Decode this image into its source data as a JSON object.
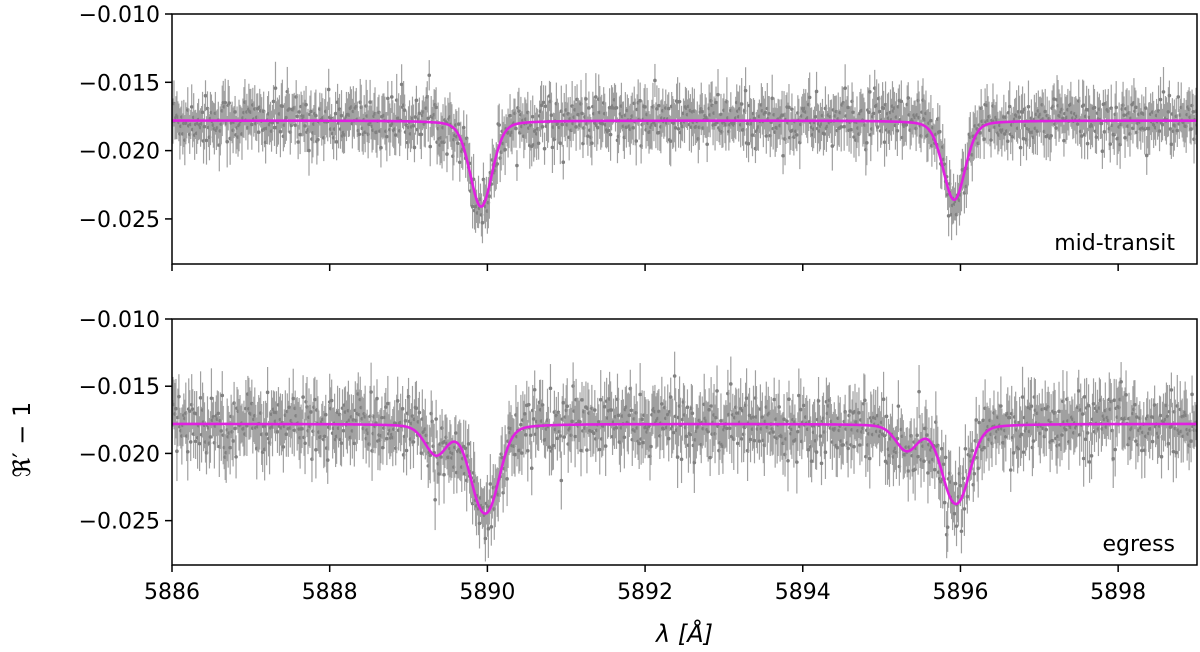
{
  "chart_data": [
    {
      "type": "scatter",
      "panel_label": "mid-transit",
      "xlim": [
        5886,
        5899
      ],
      "ylim": [
        -0.0283,
        -0.01
      ],
      "yticks": [
        -0.01,
        -0.015,
        -0.02,
        -0.025
      ],
      "ytick_labels": [
        "−0.010",
        "−0.015",
        "−0.020",
        "−0.025"
      ],
      "xticks": [
        5886,
        5888,
        5890,
        5892,
        5894,
        5896,
        5898
      ],
      "xtick_labels": [],
      "grid": false,
      "series": [
        {
          "style": "data with error bars",
          "color": "#808080",
          "baseline": -0.0178,
          "noise_sd": 0.0009,
          "error": 0.0015,
          "x_start": 5886.0,
          "x_end": 5899.0,
          "spacing": 0.0125
        },
        {
          "style": "model line",
          "color": "#e020e0",
          "baseline": -0.0178,
          "absorption_lines": [
            {
              "center": 5889.92,
              "depth": 0.0063
            },
            {
              "center": 5895.92,
              "depth": 0.0058
            }
          ]
        }
      ]
    },
    {
      "type": "scatter",
      "panel_label": "egress",
      "xlim": [
        5886,
        5899
      ],
      "ylim": [
        -0.0283,
        -0.01
      ],
      "yticks": [
        -0.01,
        -0.015,
        -0.02,
        -0.025
      ],
      "ytick_labels": [
        "−0.010",
        "−0.015",
        "−0.020",
        "−0.025"
      ],
      "xticks": [
        5886,
        5888,
        5890,
        5892,
        5894,
        5896,
        5898
      ],
      "xtick_labels": [
        "5886",
        "5888",
        "5890",
        "5892",
        "5894",
        "5896",
        "5898"
      ],
      "xlabel": "λ [Å]",
      "ylabel": "ℜ′ − 1",
      "grid": false,
      "series": [
        {
          "style": "data with error bars",
          "color": "#808080",
          "baseline": -0.0178,
          "noise_sd": 0.0011,
          "error": 0.0018,
          "x_start": 5886.0,
          "x_end": 5899.0,
          "spacing": 0.0125
        },
        {
          "style": "model line",
          "color": "#e020e0",
          "baseline": -0.0178,
          "absorption_lines": [
            {
              "center": 5889.35,
              "depth": 0.0022
            },
            {
              "center": 5889.88,
              "depth": 0.0038
            },
            {
              "center": 5890.05,
              "depth": 0.0042
            },
            {
              "center": 5895.32,
              "depth": 0.0019
            },
            {
              "center": 5895.86,
              "depth": 0.0034
            },
            {
              "center": 5896.02,
              "depth": 0.0036
            }
          ]
        }
      ]
    }
  ]
}
